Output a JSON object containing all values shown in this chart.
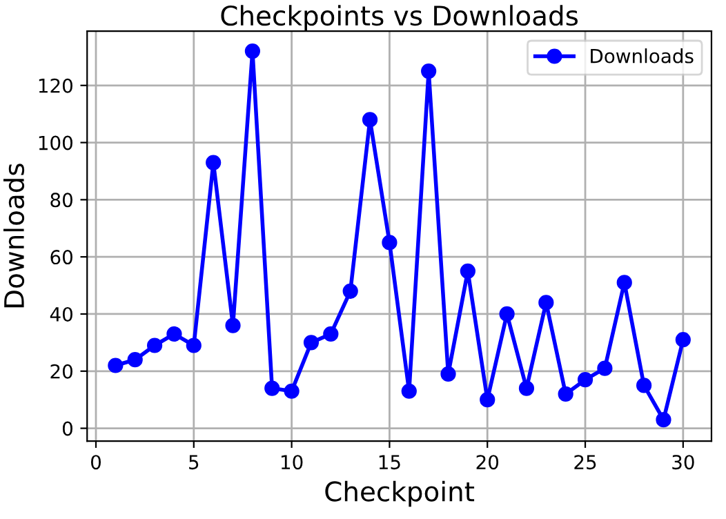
{
  "chart_data": {
    "type": "line",
    "title": "Checkpoints vs Downloads",
    "xlabel": "Checkpoint",
    "ylabel": "Downloads",
    "x": [
      1,
      2,
      3,
      4,
      5,
      6,
      7,
      8,
      9,
      10,
      11,
      12,
      13,
      14,
      15,
      16,
      17,
      18,
      19,
      20,
      21,
      22,
      23,
      24,
      25,
      26,
      27,
      28,
      29,
      30
    ],
    "series": [
      {
        "name": "Downloads",
        "color": "#0000ff",
        "values": [
          22,
          24,
          29,
          33,
          29,
          93,
          36,
          132,
          14,
          13,
          30,
          33,
          48,
          108,
          65,
          13,
          125,
          19,
          55,
          10,
          40,
          14,
          44,
          12,
          17,
          21,
          51,
          15,
          3,
          31
        ]
      }
    ],
    "xlim": [
      -0.45,
      31.45
    ],
    "ylim": [
      -4.5,
      139
    ],
    "xticks": [
      0,
      5,
      10,
      15,
      20,
      25,
      30
    ],
    "yticks": [
      0,
      20,
      40,
      60,
      80,
      100,
      120
    ],
    "grid": true,
    "legend": "top right",
    "marker": "circle",
    "line_style": "solid"
  }
}
